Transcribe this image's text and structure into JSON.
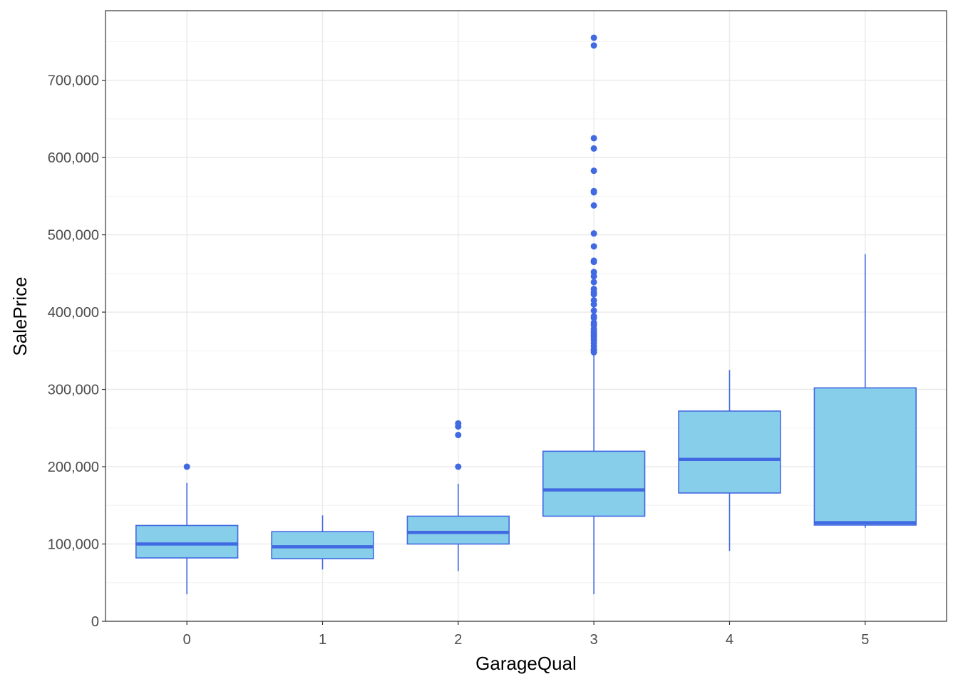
{
  "chart_data": {
    "type": "boxplot",
    "title": "",
    "xlabel": "GarageQual",
    "ylabel": "SalePrice",
    "categories": [
      "0",
      "1",
      "2",
      "3",
      "4",
      "5"
    ],
    "ylim": [
      0,
      790000
    ],
    "yticks": [
      0,
      100000,
      200000,
      300000,
      400000,
      500000,
      600000,
      700000
    ],
    "ytick_labels": [
      "0",
      "100,000",
      "200,000",
      "300,000",
      "400,000",
      "500,000",
      "600,000",
      "700,000"
    ],
    "grid": true,
    "legend": "none",
    "fill_color": "#87CEEB",
    "line_color": "#4169E1",
    "boxes": [
      {
        "category": "0",
        "whisker_low": 35000,
        "q1": 82000,
        "median": 100000,
        "q3": 124000,
        "whisker_high": 179000,
        "outliers": [
          200000
        ]
      },
      {
        "category": "1",
        "whisker_low": 67000,
        "q1": 81000,
        "median": 96500,
        "q3": 116000,
        "whisker_high": 137000,
        "outliers": []
      },
      {
        "category": "2",
        "whisker_low": 65000,
        "q1": 100000,
        "median": 115000,
        "q3": 136000,
        "whisker_high": 178000,
        "outliers": [
          200000,
          241000,
          252000,
          256000
        ]
      },
      {
        "category": "3",
        "whisker_low": 35000,
        "q1": 136000,
        "median": 170000,
        "q3": 220000,
        "whisker_high": 345000,
        "outliers": [
          755000,
          745000,
          625000,
          611700,
          582900,
          556600,
          555000,
          538000,
          501800,
          485000,
          466500,
          465000,
          451900,
          446300,
          438800,
          430000,
          426000,
          423000,
          415300,
          410000,
          402000,
          394600,
          392500,
          386300,
          383000,
          378500,
          375000,
          372400,
          369900,
          367300,
          364000,
          360000,
          356000,
          352000,
          350000,
          348000
        ]
      },
      {
        "category": "4",
        "whisker_low": 91000,
        "q1": 166000,
        "median": 209500,
        "q3": 272000,
        "whisker_high": 325000,
        "outliers": []
      },
      {
        "category": "5",
        "whisker_low": 121000,
        "q1": 124500,
        "median": 127500,
        "q3": 302000,
        "whisker_high": 475000,
        "outliers": []
      }
    ]
  }
}
